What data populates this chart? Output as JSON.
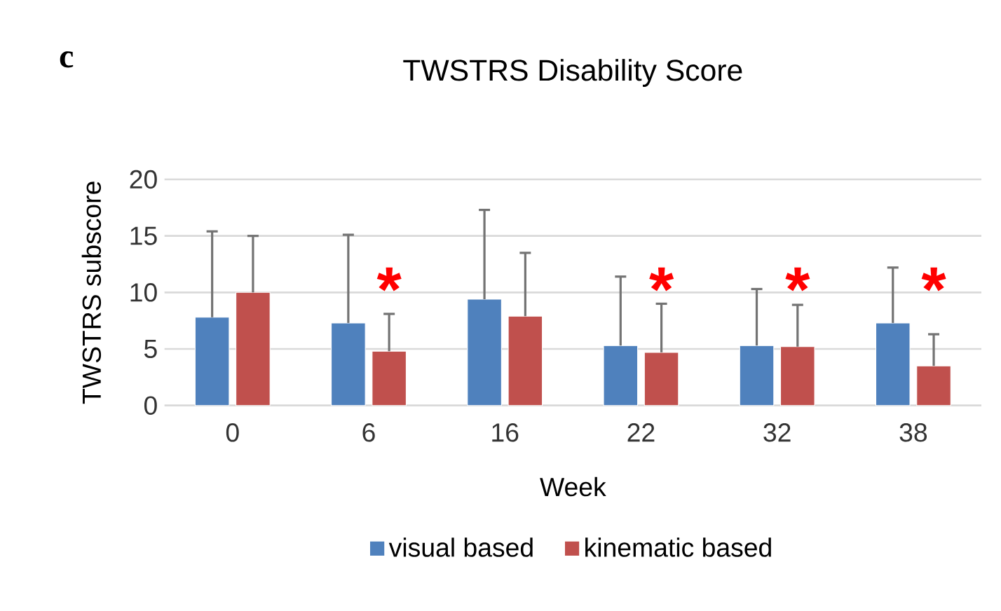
{
  "chart_data": {
    "type": "bar",
    "title": "TWSTRS Disability Score",
    "xlabel": "Week",
    "ylabel": "TWSTRS subscore",
    "categories": [
      "0",
      "6",
      "16",
      "22",
      "32",
      "38"
    ],
    "series": [
      {
        "name": "visual based",
        "color": "#4f81bd",
        "values": [
          7.8,
          7.3,
          9.4,
          5.3,
          5.3,
          7.3
        ],
        "errors": [
          [
            7.8,
            15.4
          ],
          [
            7.3,
            15.1
          ],
          [
            9.4,
            17.3
          ],
          [
            5.3,
            11.4
          ],
          [
            5.3,
            10.3
          ],
          [
            7.3,
            12.2
          ]
        ]
      },
      {
        "name": "kinematic based",
        "color": "#c0504d",
        "values": [
          10.0,
          4.8,
          7.9,
          4.7,
          5.2,
          3.5
        ],
        "errors": [
          [
            10.0,
            15.0
          ],
          [
            4.8,
            8.1
          ],
          [
            7.9,
            13.5
          ],
          [
            4.7,
            9.0
          ],
          [
            5.2,
            8.9
          ],
          [
            3.5,
            6.3
          ]
        ]
      }
    ],
    "ylim": [
      0,
      20
    ],
    "yticks": [
      0,
      5,
      10,
      15,
      20
    ],
    "grid": "y",
    "legend": "bottom",
    "annotations": [
      "c",
      "*",
      "*",
      "*",
      "*"
    ]
  }
}
